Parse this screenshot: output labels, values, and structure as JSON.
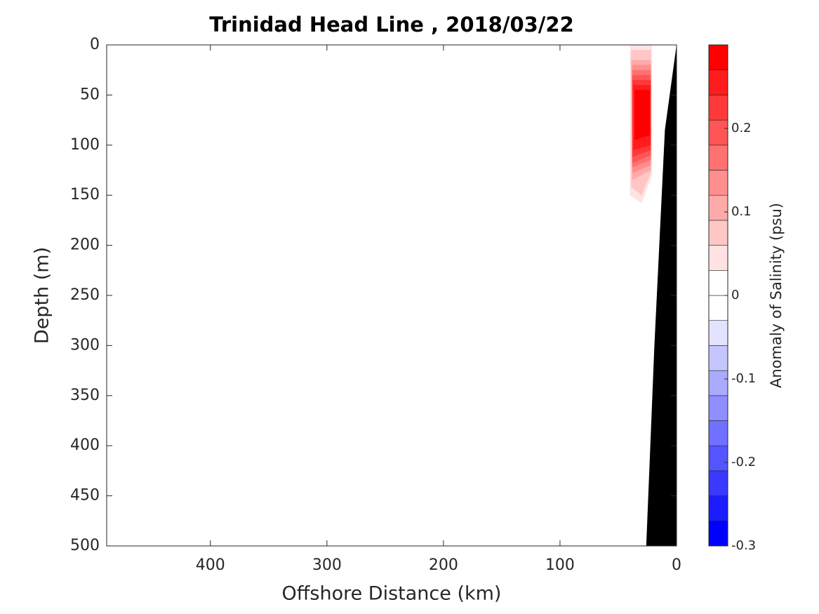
{
  "chart_data": {
    "type": "contour_section",
    "title": "Trinidad Head Line , 2018/03/22",
    "x_label": "Offshore Distance (km)",
    "y_label": "Depth (m)",
    "xlim": [
      489,
      0
    ],
    "xticks": [
      400,
      300,
      200,
      100,
      0
    ],
    "ylim": [
      0,
      500
    ],
    "yticks": [
      0,
      50,
      100,
      150,
      200,
      250,
      300,
      350,
      400,
      450,
      500
    ],
    "y_reversed": true,
    "bathymetry": {
      "color": "#000000",
      "x": [
        0,
        10,
        19,
        26
      ],
      "depth": [
        0,
        85,
        300,
        500
      ]
    },
    "contours": [
      {
        "level": 0.03,
        "x": [
          40,
          21,
          21,
          30,
          40
        ],
        "depth": [
          0,
          0,
          130,
          158,
          150
        ]
      },
      {
        "level": 0.06,
        "x": [
          39,
          22,
          22,
          30,
          39
        ],
        "depth": [
          5,
          5,
          128,
          150,
          142
        ]
      },
      {
        "level": 0.09,
        "x": [
          39,
          22,
          22,
          38
        ],
        "depth": [
          15,
          15,
          125,
          135
        ]
      },
      {
        "level": 0.12,
        "x": [
          38,
          22,
          22,
          38
        ],
        "depth": [
          20,
          20,
          120,
          128
        ]
      },
      {
        "level": 0.15,
        "x": [
          38,
          22,
          22,
          38
        ],
        "depth": [
          25,
          25,
          115,
          122
        ]
      },
      {
        "level": 0.18,
        "x": [
          38,
          22,
          22,
          38
        ],
        "depth": [
          30,
          30,
          110,
          118
        ]
      },
      {
        "level": 0.21,
        "x": [
          38,
          22,
          22,
          38
        ],
        "depth": [
          35,
          35,
          105,
          112
        ]
      },
      {
        "level": 0.24,
        "x": [
          37,
          22,
          22,
          37
        ],
        "depth": [
          40,
          40,
          100,
          105
        ]
      },
      {
        "level": 0.27,
        "x": [
          36,
          23,
          23,
          36
        ],
        "depth": [
          45,
          45,
          90,
          95
        ]
      }
    ],
    "colorbar": {
      "label": "Anomaly of Salinity (psu)",
      "clim": [
        -0.3,
        0.3
      ],
      "n_levels": 20,
      "ticks": [
        -0.3,
        -0.2,
        -0.1,
        0,
        0.1,
        0.2
      ],
      "low_color": "#0000ff",
      "mid_color": "#ffffff",
      "high_color": "#ff0000"
    }
  }
}
